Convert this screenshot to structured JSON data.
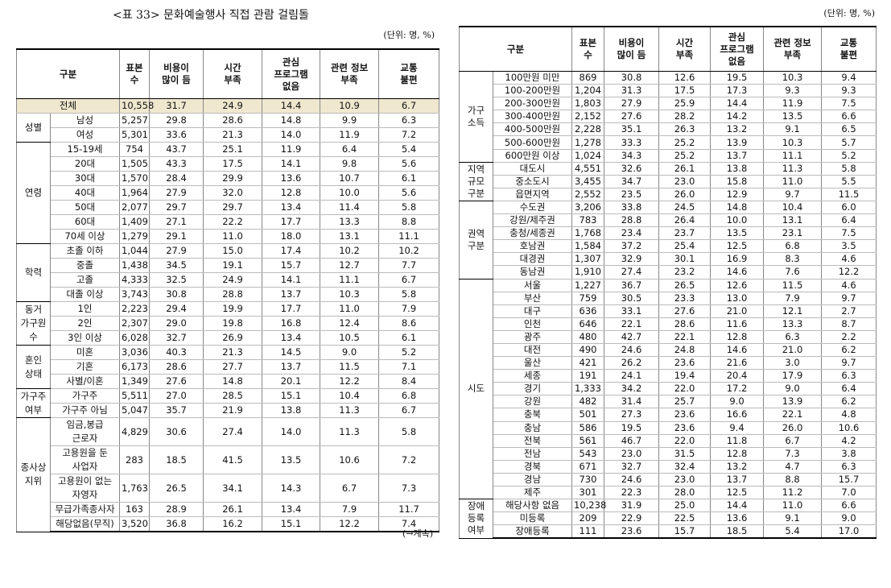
{
  "left": {
    "title": "<표 33> 문화예술행사 직접 관람 걸림돌",
    "unit": "(단위: 명, %)",
    "header": [
      "구분",
      "표본\n수",
      "비용이\n많이 듬",
      "시간\n부족",
      "관심\n프로그램\n없음",
      "관련 정보\n부족",
      "교통\n불편"
    ],
    "total": {
      "label": "전체",
      "cells": [
        "10,558",
        "31.7",
        "24.9",
        "14.4",
        "10.9",
        "6.7"
      ]
    },
    "groups": [
      {
        "label": "성별",
        "rows": [
          {
            "label": "남성",
            "cells": [
              "5,257",
              "29.8",
              "28.6",
              "14.8",
              "9.9",
              "6.3"
            ]
          },
          {
            "label": "여성",
            "cells": [
              "5,301",
              "33.6",
              "21.3",
              "14.0",
              "11.9",
              "7.2"
            ]
          }
        ]
      },
      {
        "label": "연령",
        "rows": [
          {
            "label": "15-19세",
            "cells": [
              "754",
              "43.7",
              "25.1",
              "11.9",
              "6.4",
              "5.4"
            ]
          },
          {
            "label": "20대",
            "cells": [
              "1,505",
              "43.3",
              "17.5",
              "14.1",
              "9.8",
              "5.6"
            ]
          },
          {
            "label": "30대",
            "cells": [
              "1,570",
              "28.4",
              "29.9",
              "13.6",
              "10.7",
              "6.1"
            ]
          },
          {
            "label": "40대",
            "cells": [
              "1,964",
              "27.9",
              "32.0",
              "12.8",
              "10.0",
              "5.6"
            ]
          },
          {
            "label": "50대",
            "cells": [
              "2,077",
              "29.7",
              "29.7",
              "13.4",
              "11.4",
              "5.8"
            ]
          },
          {
            "label": "60대",
            "cells": [
              "1,409",
              "27.1",
              "22.2",
              "17.7",
              "13.3",
              "8.8"
            ]
          },
          {
            "label": "70세 이상",
            "cells": [
              "1,279",
              "29.1",
              "11.0",
              "18.0",
              "13.1",
              "11.1"
            ]
          }
        ]
      },
      {
        "label": "학력",
        "rows": [
          {
            "label": "초졸 이하",
            "cells": [
              "1,044",
              "27.9",
              "15.0",
              "17.4",
              "10.2",
              "10.2"
            ]
          },
          {
            "label": "중졸",
            "cells": [
              "1,438",
              "34.5",
              "19.1",
              "15.7",
              "12.7",
              "7.7"
            ]
          },
          {
            "label": "고졸",
            "cells": [
              "4,333",
              "32.5",
              "24.9",
              "14.1",
              "11.1",
              "6.7"
            ]
          },
          {
            "label": "대졸 이상",
            "cells": [
              "3,743",
              "30.8",
              "28.8",
              "13.7",
              "10.3",
              "5.8"
            ]
          }
        ]
      },
      {
        "label": "동거\n가구원\n수",
        "rows": [
          {
            "label": "1인",
            "cells": [
              "2,223",
              "29.4",
              "19.9",
              "17.7",
              "11.0",
              "7.9"
            ]
          },
          {
            "label": "2인",
            "cells": [
              "2,307",
              "29.0",
              "19.8",
              "16.8",
              "12.4",
              "8.6"
            ]
          },
          {
            "label": "3인 이상",
            "cells": [
              "6,028",
              "32.7",
              "26.9",
              "13.4",
              "10.5",
              "6.1"
            ]
          }
        ]
      },
      {
        "label": "혼인\n상태",
        "rows": [
          {
            "label": "미혼",
            "cells": [
              "3,036",
              "40.3",
              "21.3",
              "14.5",
              "9.0",
              "5.2"
            ]
          },
          {
            "label": "기혼",
            "cells": [
              "6,173",
              "28.6",
              "27.7",
              "13.7",
              "11.5",
              "7.1"
            ]
          },
          {
            "label": "사별/이혼",
            "cells": [
              "1,349",
              "27.6",
              "14.8",
              "20.1",
              "12.2",
              "8.4"
            ]
          }
        ]
      },
      {
        "label": "가구주\n여부",
        "rows": [
          {
            "label": "가구주",
            "cells": [
              "5,511",
              "27.0",
              "28.5",
              "15.1",
              "10.4",
              "6.8"
            ]
          },
          {
            "label": "가구주 아님",
            "cells": [
              "5,047",
              "35.7",
              "21.9",
              "13.8",
              "11.3",
              "6.7"
            ]
          }
        ]
      },
      {
        "label": "종사상\n지위",
        "rows": [
          {
            "label": "임금,봉급\n근로자",
            "cells": [
              "4,829",
              "30.6",
              "27.4",
              "14.0",
              "11.3",
              "5.8"
            ]
          },
          {
            "label": "고용원을 둔\n사업자",
            "cells": [
              "283",
              "18.5",
              "41.5",
              "13.5",
              "10.6",
              "7.2"
            ]
          },
          {
            "label": "고용원이 없는\n자영자",
            "cells": [
              "1,763",
              "26.5",
              "34.1",
              "14.3",
              "6.7",
              "7.3"
            ]
          },
          {
            "label": "무급가족종사자",
            "cells": [
              "163",
              "28.9",
              "26.1",
              "13.4",
              "7.9",
              "11.7"
            ]
          },
          {
            "label": "해당없음(무직)",
            "cells": [
              "3,520",
              "36.8",
              "16.2",
              "15.1",
              "12.2",
              "7.4"
            ]
          }
        ]
      }
    ],
    "note": "(→계속)"
  },
  "right": {
    "unit": "(단위: 명, %)",
    "header": [
      "구분",
      "표본\n수",
      "비용이\n많이 듬",
      "시간\n부족",
      "관심\n프로그램\n없음",
      "관련 정보\n부족",
      "교통\n불편"
    ],
    "groups": [
      {
        "label": "가구\n소득",
        "rows": [
          {
            "label": "100만원 미만",
            "cells": [
              "869",
              "30.8",
              "12.6",
              "19.5",
              "10.3",
              "9.4"
            ]
          },
          {
            "label": "100-200만원",
            "cells": [
              "1,204",
              "31.3",
              "17.5",
              "17.3",
              "9.3",
              "9.3"
            ]
          },
          {
            "label": "200-300만원",
            "cells": [
              "1,803",
              "27.9",
              "25.9",
              "14.4",
              "11.9",
              "7.5"
            ]
          },
          {
            "label": "300-400만원",
            "cells": [
              "2,152",
              "27.6",
              "28.2",
              "14.2",
              "13.5",
              "6.6"
            ]
          },
          {
            "label": "400-500만원",
            "cells": [
              "2,228",
              "35.1",
              "26.3",
              "13.2",
              "9.1",
              "6.5"
            ]
          },
          {
            "label": "500-600만원",
            "cells": [
              "1,278",
              "33.3",
              "25.2",
              "13.9",
              "10.3",
              "5.7"
            ]
          },
          {
            "label": "600만원 이상",
            "cells": [
              "1,024",
              "34.3",
              "25.2",
              "13.7",
              "11.1",
              "5.2"
            ]
          }
        ]
      },
      {
        "label": "지역\n규모\n구분",
        "rows": [
          {
            "label": "대도시",
            "cells": [
              "4,551",
              "32.6",
              "26.1",
              "13.8",
              "11.3",
              "5.8"
            ]
          },
          {
            "label": "중소도시",
            "cells": [
              "3,455",
              "34.7",
              "23.0",
              "15.8",
              "11.0",
              "5.5"
            ]
          },
          {
            "label": "읍면지역",
            "cells": [
              "2,552",
              "23.5",
              "26.0",
              "12.9",
              "9.7",
              "11.5"
            ]
          }
        ]
      },
      {
        "label": "권역\n구분",
        "rows": [
          {
            "label": "수도권",
            "cells": [
              "3,206",
              "33.8",
              "24.5",
              "14.8",
              "10.4",
              "6.0"
            ]
          },
          {
            "label": "강원/제주권",
            "cells": [
              "783",
              "28.8",
              "26.4",
              "10.0",
              "13.1",
              "6.4"
            ]
          },
          {
            "label": "충청/세종권",
            "cells": [
              "1,768",
              "23.4",
              "23.7",
              "13.5",
              "23.1",
              "7.5"
            ]
          },
          {
            "label": "호남권",
            "cells": [
              "1,584",
              "37.2",
              "25.4",
              "12.5",
              "6.8",
              "3.5"
            ]
          },
          {
            "label": "대경권",
            "cells": [
              "1,307",
              "32.9",
              "30.1",
              "16.9",
              "8.3",
              "4.6"
            ]
          },
          {
            "label": "동남권",
            "cells": [
              "1,910",
              "27.4",
              "23.2",
              "14.6",
              "7.6",
              "12.2"
            ]
          }
        ]
      },
      {
        "label": "시도",
        "rows": [
          {
            "label": "서울",
            "cells": [
              "1,227",
              "36.7",
              "26.5",
              "12.6",
              "11.5",
              "4.6"
            ]
          },
          {
            "label": "부산",
            "cells": [
              "759",
              "30.5",
              "23.3",
              "13.0",
              "7.9",
              "9.7"
            ]
          },
          {
            "label": "대구",
            "cells": [
              "636",
              "33.1",
              "27.6",
              "21.0",
              "12.1",
              "2.7"
            ]
          },
          {
            "label": "인천",
            "cells": [
              "646",
              "22.1",
              "28.6",
              "11.6",
              "13.3",
              "8.7"
            ]
          },
          {
            "label": "광주",
            "cells": [
              "480",
              "42.7",
              "22.1",
              "12.8",
              "6.3",
              "2.2"
            ]
          },
          {
            "label": "대전",
            "cells": [
              "490",
              "24.6",
              "24.8",
              "14.6",
              "21.0",
              "6.2"
            ]
          },
          {
            "label": "울산",
            "cells": [
              "421",
              "26.2",
              "23.6",
              "21.6",
              "3.0",
              "9.7"
            ]
          },
          {
            "label": "세종",
            "cells": [
              "191",
              "24.1",
              "19.4",
              "20.4",
              "17.9",
              "6.3"
            ]
          },
          {
            "label": "경기",
            "cells": [
              "1,333",
              "34.2",
              "22.0",
              "17.2",
              "9.0",
              "6.4"
            ]
          },
          {
            "label": "강원",
            "cells": [
              "482",
              "31.4",
              "25.7",
              "9.0",
              "13.9",
              "6.2"
            ]
          },
          {
            "label": "충북",
            "cells": [
              "501",
              "27.3",
              "23.6",
              "16.6",
              "22.1",
              "4.8"
            ]
          },
          {
            "label": "충남",
            "cells": [
              "586",
              "19.5",
              "23.6",
              "9.4",
              "26.0",
              "10.6"
            ]
          },
          {
            "label": "전북",
            "cells": [
              "561",
              "46.7",
              "22.0",
              "11.8",
              "6.7",
              "4.2"
            ]
          },
          {
            "label": "전남",
            "cells": [
              "543",
              "23.0",
              "31.5",
              "12.8",
              "7.3",
              "3.8"
            ]
          },
          {
            "label": "경북",
            "cells": [
              "671",
              "32.7",
              "32.4",
              "13.2",
              "4.7",
              "6.3"
            ]
          },
          {
            "label": "경남",
            "cells": [
              "730",
              "24.6",
              "23.0",
              "13.7",
              "8.8",
              "15.7"
            ]
          },
          {
            "label": "제주",
            "cells": [
              "301",
              "22.3",
              "28.0",
              "12.5",
              "11.2",
              "7.0"
            ]
          }
        ]
      },
      {
        "label": "장애\n등록\n여부",
        "rows": [
          {
            "label": "해당사항 없음",
            "cells": [
              "10,238",
              "31.9",
              "25.0",
              "14.4",
              "11.0",
              "6.6"
            ]
          },
          {
            "label": "미등록",
            "cells": [
              "209",
              "22.9",
              "22.5",
              "13.6",
              "9.1",
              "9.0"
            ]
          },
          {
            "label": "장애등록",
            "cells": [
              "111",
              "23.6",
              "15.7",
              "18.5",
              "5.4",
              "17.0"
            ]
          }
        ]
      }
    ]
  }
}
